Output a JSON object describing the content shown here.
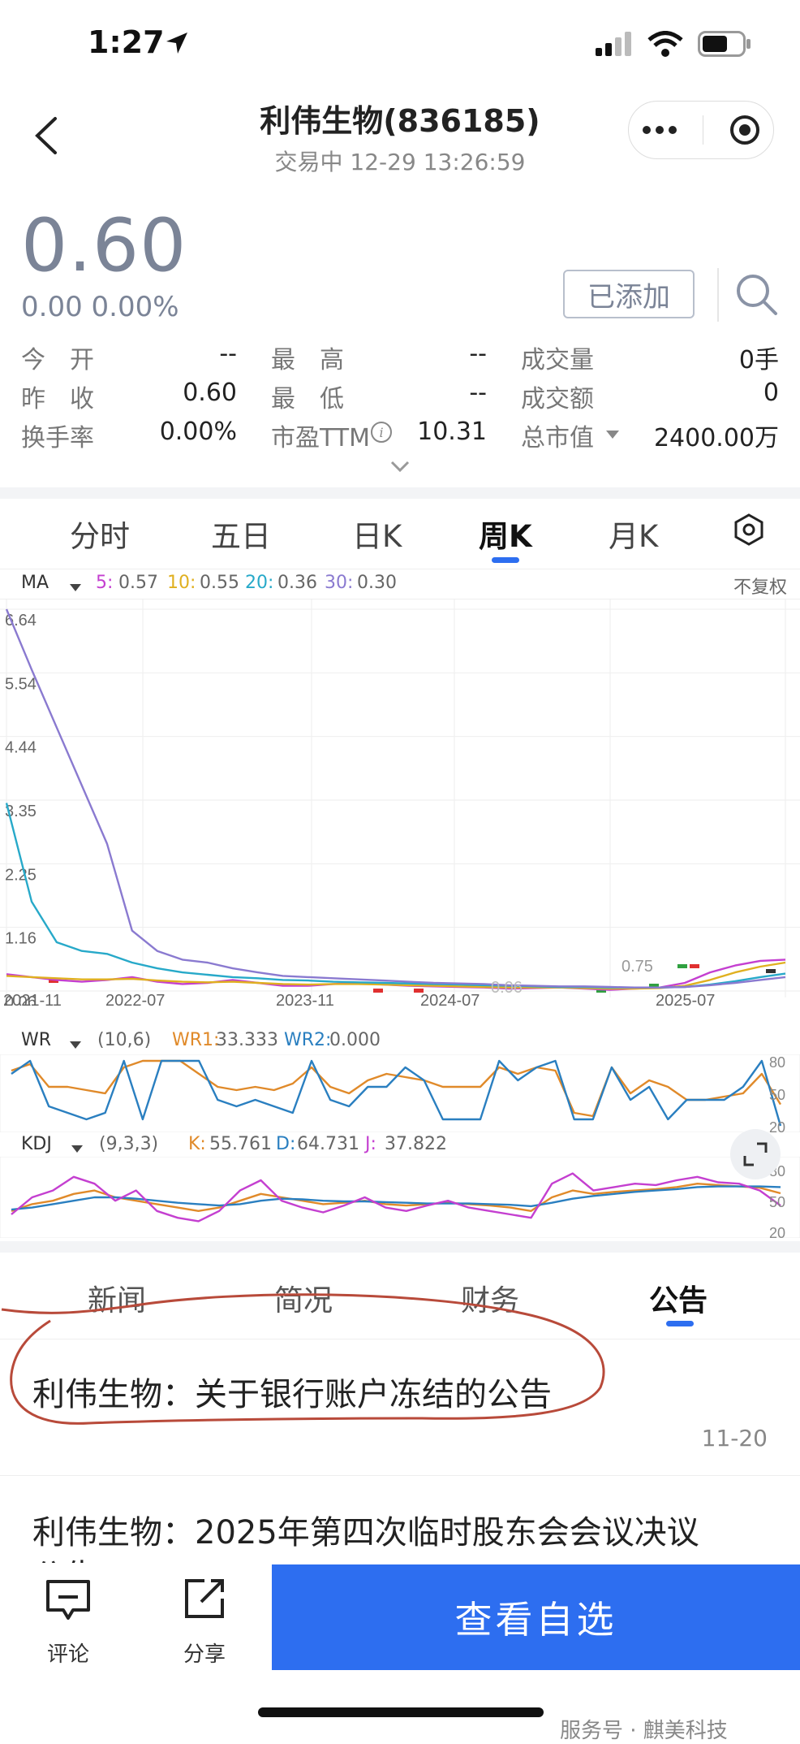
{
  "status": {
    "time": "1:27"
  },
  "header": {
    "title": "利伟生物(836185)",
    "subtitle": "交易中  12-29 13:26:59"
  },
  "quote": {
    "price": "0.60",
    "change": "0.00  0.00%",
    "added_label": "已添加",
    "stats": [
      {
        "label": "今　开",
        "value": "--"
      },
      {
        "label": "最　高",
        "value": "--"
      },
      {
        "label": "成交量",
        "value": "0手"
      },
      {
        "label": "昨　收",
        "value": "0.60"
      },
      {
        "label": "最　低",
        "value": "--"
      },
      {
        "label": "成交额",
        "value": "0"
      },
      {
        "label": "换手率",
        "value": "0.00%"
      },
      {
        "label": "市盈TTM",
        "value": "10.31"
      },
      {
        "label": "总市值",
        "value": "2400.00万"
      }
    ]
  },
  "tabs": [
    "分时",
    "五日",
    "日K",
    "周K",
    "月K"
  ],
  "active_tab": "周K",
  "ma_legend": {
    "name": "MA",
    "items": [
      {
        "label": "5:",
        "value": "0.57",
        "color": "#c43fd0"
      },
      {
        "label": "10:",
        "value": "0.55",
        "color": "#e0b020"
      },
      {
        "label": "20:",
        "value": "0.36",
        "color": "#27a9c9"
      },
      {
        "label": "30:",
        "value": "0.30",
        "color": "#8a7ad0"
      }
    ],
    "adjust": "不复权"
  },
  "chart_data": [
    {
      "type": "line",
      "title": "",
      "y_ticks": [
        "6.64",
        "5.54",
        "4.44",
        "3.35",
        "2.25",
        "1.16",
        "0.06"
      ],
      "x_ticks": [
        "2021-11",
        "2022-07",
        "2023-11",
        "2024-07",
        "2025-07"
      ],
      "annotations": [
        "0.75",
        "0.06"
      ],
      "ylim": [
        0.06,
        6.64
      ],
      "series": [
        {
          "name": "5",
          "color": "#c43fd0",
          "values": [
            0.35,
            0.3,
            0.25,
            0.22,
            0.25,
            0.3,
            0.22,
            0.18,
            0.2,
            0.25,
            0.2,
            0.15,
            0.15,
            0.18,
            0.2,
            0.17,
            0.15,
            0.14,
            0.13,
            0.12,
            0.1,
            0.11,
            0.12,
            0.1,
            0.08,
            0.1,
            0.12,
            0.2,
            0.38,
            0.5,
            0.58,
            0.6
          ]
        },
        {
          "name": "10",
          "color": "#e0b020",
          "values": [
            0.32,
            0.3,
            0.28,
            0.26,
            0.26,
            0.27,
            0.24,
            0.22,
            0.21,
            0.22,
            0.2,
            0.18,
            0.17,
            0.18,
            0.18,
            0.17,
            0.16,
            0.15,
            0.14,
            0.13,
            0.12,
            0.12,
            0.12,
            0.11,
            0.1,
            0.1,
            0.11,
            0.15,
            0.25,
            0.38,
            0.48,
            0.55
          ]
        },
        {
          "name": "20",
          "color": "#27a9c9",
          "values": [
            3.3,
            1.6,
            0.9,
            0.75,
            0.7,
            0.55,
            0.45,
            0.38,
            0.34,
            0.3,
            0.28,
            0.25,
            0.24,
            0.22,
            0.21,
            0.2,
            0.19,
            0.18,
            0.17,
            0.16,
            0.15,
            0.14,
            0.13,
            0.13,
            0.12,
            0.12,
            0.12,
            0.13,
            0.17,
            0.23,
            0.3,
            0.36
          ]
        },
        {
          "name": "30",
          "color": "#8a7ad0",
          "values": [
            6.64,
            5.6,
            4.6,
            3.6,
            2.6,
            1.1,
            0.75,
            0.6,
            0.55,
            0.45,
            0.38,
            0.32,
            0.3,
            0.28,
            0.26,
            0.24,
            0.22,
            0.2,
            0.19,
            0.18,
            0.16,
            0.15,
            0.14,
            0.14,
            0.13,
            0.12,
            0.12,
            0.13,
            0.16,
            0.2,
            0.25,
            0.3
          ]
        }
      ]
    },
    {
      "type": "line",
      "title": "",
      "y_ticks": [
        "80",
        "50",
        "20"
      ],
      "ylim": [
        0,
        100
      ],
      "series": [
        {
          "name": "WR1",
          "color": "#e08a2a",
          "values": [
            85,
            95,
            60,
            60,
            55,
            50,
            90,
            100,
            100,
            100,
            80,
            60,
            55,
            60,
            55,
            65,
            90,
            60,
            50,
            70,
            80,
            75,
            70,
            60,
            60,
            60,
            90,
            80,
            90,
            85,
            20,
            15,
            90,
            50,
            70,
            60,
            40,
            40,
            45,
            50,
            80,
            33
          ]
        },
        {
          "name": "WR2",
          "color": "#2a7fc0",
          "values": [
            80,
            100,
            30,
            20,
            10,
            20,
            100,
            10,
            100,
            100,
            100,
            40,
            30,
            40,
            30,
            20,
            100,
            40,
            30,
            60,
            60,
            90,
            70,
            10,
            10,
            10,
            100,
            70,
            90,
            100,
            10,
            10,
            90,
            40,
            60,
            10,
            40,
            40,
            40,
            60,
            100,
            0
          ]
        }
      ],
      "legend": {
        "name": "WR",
        "params": "(10,6)",
        "wr1": "33.333",
        "wr2": "0.000"
      }
    },
    {
      "type": "line",
      "title": "",
      "y_ticks": [
        "80",
        "50",
        "20"
      ],
      "ylim": [
        0,
        100
      ],
      "series": [
        {
          "name": "K",
          "color": "#e08a2a",
          "values": [
            30,
            40,
            45,
            55,
            60,
            50,
            45,
            40,
            35,
            30,
            35,
            45,
            55,
            50,
            45,
            40,
            42,
            45,
            40,
            38,
            40,
            42,
            40,
            38,
            35,
            30,
            50,
            60,
            55,
            58,
            60,
            62,
            65,
            70,
            68,
            66,
            64,
            56
          ]
        },
        {
          "name": "D",
          "color": "#2a7fc0",
          "values": [
            32,
            35,
            40,
            45,
            50,
            50,
            48,
            45,
            42,
            40,
            38,
            40,
            45,
            48,
            47,
            45,
            44,
            44,
            43,
            42,
            41,
            41,
            41,
            40,
            39,
            37,
            42,
            48,
            52,
            55,
            58,
            60,
            62,
            65,
            66,
            66,
            66,
            65
          ]
        },
        {
          "name": "J",
          "color": "#c43fd0",
          "values": [
            25,
            50,
            60,
            80,
            70,
            45,
            60,
            30,
            20,
            15,
            30,
            60,
            75,
            45,
            35,
            28,
            38,
            50,
            35,
            30,
            38,
            45,
            35,
            30,
            25,
            20,
            70,
            85,
            60,
            65,
            70,
            68,
            75,
            80,
            72,
            70,
            60,
            38
          ]
        }
      ],
      "legend": {
        "name": "KDJ",
        "params": "(9,3,3)",
        "k": "55.761",
        "d": "64.731",
        "j": "37.822"
      }
    }
  ],
  "wr_legend": {
    "name": "WR",
    "params": "(10,6)",
    "wr1_label": "WR1:",
    "wr1": "33.333",
    "wr2_label": "WR2:",
    "wr2": "0.000",
    "ticks": [
      "80",
      "50",
      "20"
    ]
  },
  "kdj_legend": {
    "name": "KDJ",
    "params": "(9,3,3)",
    "k_label": "K:",
    "k": "55.761",
    "d_label": "D:",
    "d": "64.731",
    "j_label": "J:",
    "j": "37.822",
    "ticks": [
      "80",
      "50",
      "20"
    ]
  },
  "info_tabs": [
    "新闻",
    "简况",
    "财务",
    "公告"
  ],
  "active_info_tab": "公告",
  "news": [
    {
      "title": "利伟生物：关于银行账户冻结的公告",
      "date": "11-20"
    },
    {
      "title": "利伟生物：2025年第四次临时股东会会议决议",
      "title_cont": "公告"
    }
  ],
  "bottom": {
    "comment": "评论",
    "share": "分享",
    "watch": "查看自选"
  },
  "watermark": "服务号 · 麒美科技",
  "colors": {
    "accent": "#2d6ef0",
    "annotation": "#b84a3a"
  }
}
